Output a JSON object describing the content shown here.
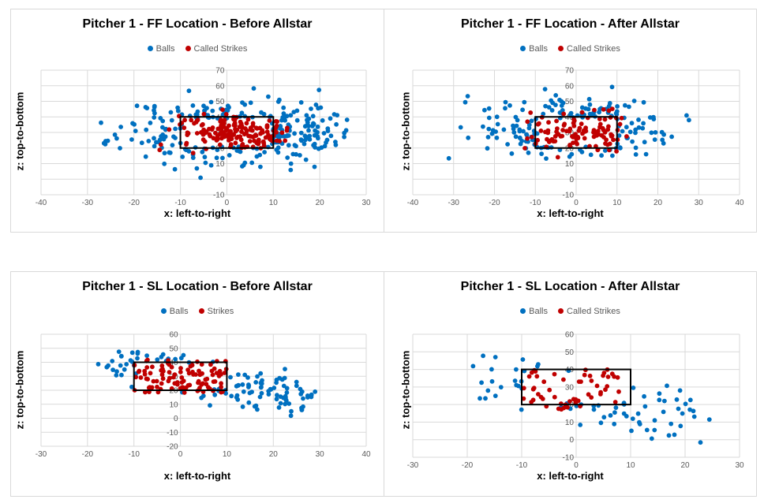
{
  "colors": {
    "balls": "#0070c0",
    "strikes": "#c00000",
    "grid": "#d9d9d9",
    "zone": "#000000"
  },
  "chart_data": [
    {
      "type": "scatter",
      "title": "Pitcher 1 - FF Location - Before Allstar",
      "xlabel": "x: left-to-right",
      "ylabel": "z: top-to-bottom",
      "xlim": [
        -40,
        30
      ],
      "ylim": [
        -10,
        70
      ],
      "xticks": [
        -40,
        -30,
        -20,
        -10,
        0,
        10,
        20,
        30
      ],
      "yticks": [
        -10,
        0,
        10,
        20,
        30,
        40,
        50,
        60,
        70
      ],
      "grid": true,
      "legend": "top",
      "strike_zone": {
        "x": [
          -10,
          10
        ],
        "z": [
          20,
          40
        ]
      },
      "series": [
        {
          "name": "Balls",
          "count": 260,
          "seed": 11,
          "dist": "normal",
          "cx": 3,
          "sx": 13,
          "cz": 31,
          "sz": 10,
          "xr": [
            -28,
            26
          ],
          "zr": [
            -6,
            60
          ],
          "exclude_zone": true
        },
        {
          "name": "Called Strikes",
          "count": 170,
          "seed": 12,
          "dist": "normal",
          "cx": 3,
          "sx": 7,
          "cz": 30,
          "sz": 6,
          "xr": [
            -15,
            13
          ],
          "zr": [
            15,
            45
          ],
          "exclude_zone": false
        }
      ]
    },
    {
      "type": "scatter",
      "title": "Pitcher 1 - FF Location - After Allstar",
      "xlabel": "x: left-to-right",
      "ylabel": "z: top-to-bottom",
      "xlim": [
        -40,
        40
      ],
      "ylim": [
        -10,
        70
      ],
      "xticks": [
        -40,
        -30,
        -20,
        -10,
        0,
        10,
        20,
        30,
        40
      ],
      "yticks": [
        -10,
        0,
        10,
        20,
        30,
        40,
        50,
        60,
        70
      ],
      "grid": true,
      "legend": "top",
      "strike_zone": {
        "x": [
          -10,
          10
        ],
        "z": [
          20,
          40
        ]
      },
      "series": [
        {
          "name": "Balls",
          "count": 170,
          "seed": 21,
          "dist": "normal",
          "cx": 0,
          "sx": 13,
          "cz": 32,
          "sz": 10,
          "xr": [
            -32,
            28
          ],
          "zr": [
            8,
            60
          ],
          "exclude_zone": true
        },
        {
          "name": "Called Strikes",
          "count": 110,
          "seed": 22,
          "dist": "normal",
          "cx": 1,
          "sx": 7,
          "cz": 30,
          "sz": 6,
          "xr": [
            -13,
            13
          ],
          "zr": [
            14,
            46
          ],
          "exclude_zone": false
        }
      ]
    },
    {
      "type": "scatter",
      "title": "Pitcher 1 - SL Location - Before Allstar",
      "xlabel": "x: left-to-right",
      "ylabel": "z: top-to-bottom",
      "xlim": [
        -30,
        40
      ],
      "ylim": [
        -20,
        60
      ],
      "xticks": [
        -30,
        -20,
        -10,
        0,
        10,
        20,
        30,
        40
      ],
      "yticks": [
        -20,
        -10,
        0,
        10,
        20,
        30,
        40,
        50,
        60
      ],
      "grid": true,
      "legend": "top",
      "strike_zone": {
        "x": [
          -10,
          10
        ],
        "z": [
          20,
          40
        ]
      },
      "series": [
        {
          "name": "Balls",
          "count": 120,
          "seed": 31,
          "dist": "diag",
          "x0": -14,
          "z0": 42,
          "x1": 28,
          "z1": 10,
          "noise": 6,
          "xr": [
            -20,
            29
          ],
          "zr": [
            -13,
            48
          ],
          "exclude_zone": true
        },
        {
          "name": "Strikes",
          "count": 105,
          "seed": 32,
          "dist": "uniform",
          "xr": [
            -10,
            10
          ],
          "zr": [
            18,
            42
          ],
          "exclude_zone": false
        }
      ]
    },
    {
      "type": "scatter",
      "title": "Pitcher 1 - SL Location - After Allstar",
      "xlabel": "x: left-to-right",
      "ylabel": "z: top-to-bottom",
      "xlim": [
        -30,
        30
      ],
      "ylim": [
        -10,
        60
      ],
      "xticks": [
        -30,
        -20,
        -10,
        0,
        10,
        20,
        30
      ],
      "yticks": [
        -10,
        0,
        10,
        20,
        30,
        40,
        50,
        60
      ],
      "grid": true,
      "legend": "top",
      "strike_zone": {
        "x": [
          -10,
          10
        ],
        "z": [
          20,
          40
        ]
      },
      "series": [
        {
          "name": "Balls",
          "count": 75,
          "seed": 41,
          "dist": "diag",
          "x0": -16,
          "z0": 36,
          "x1": 22,
          "z1": 10,
          "noise": 8,
          "xr": [
            -23,
            27
          ],
          "zr": [
            -7,
            48
          ],
          "exclude_zone": true
        },
        {
          "name": "Called Strikes",
          "count": 55,
          "seed": 42,
          "dist": "uniform",
          "xr": [
            -10,
            8
          ],
          "zr": [
            17,
            40
          ],
          "exclude_zone": false
        }
      ]
    }
  ]
}
